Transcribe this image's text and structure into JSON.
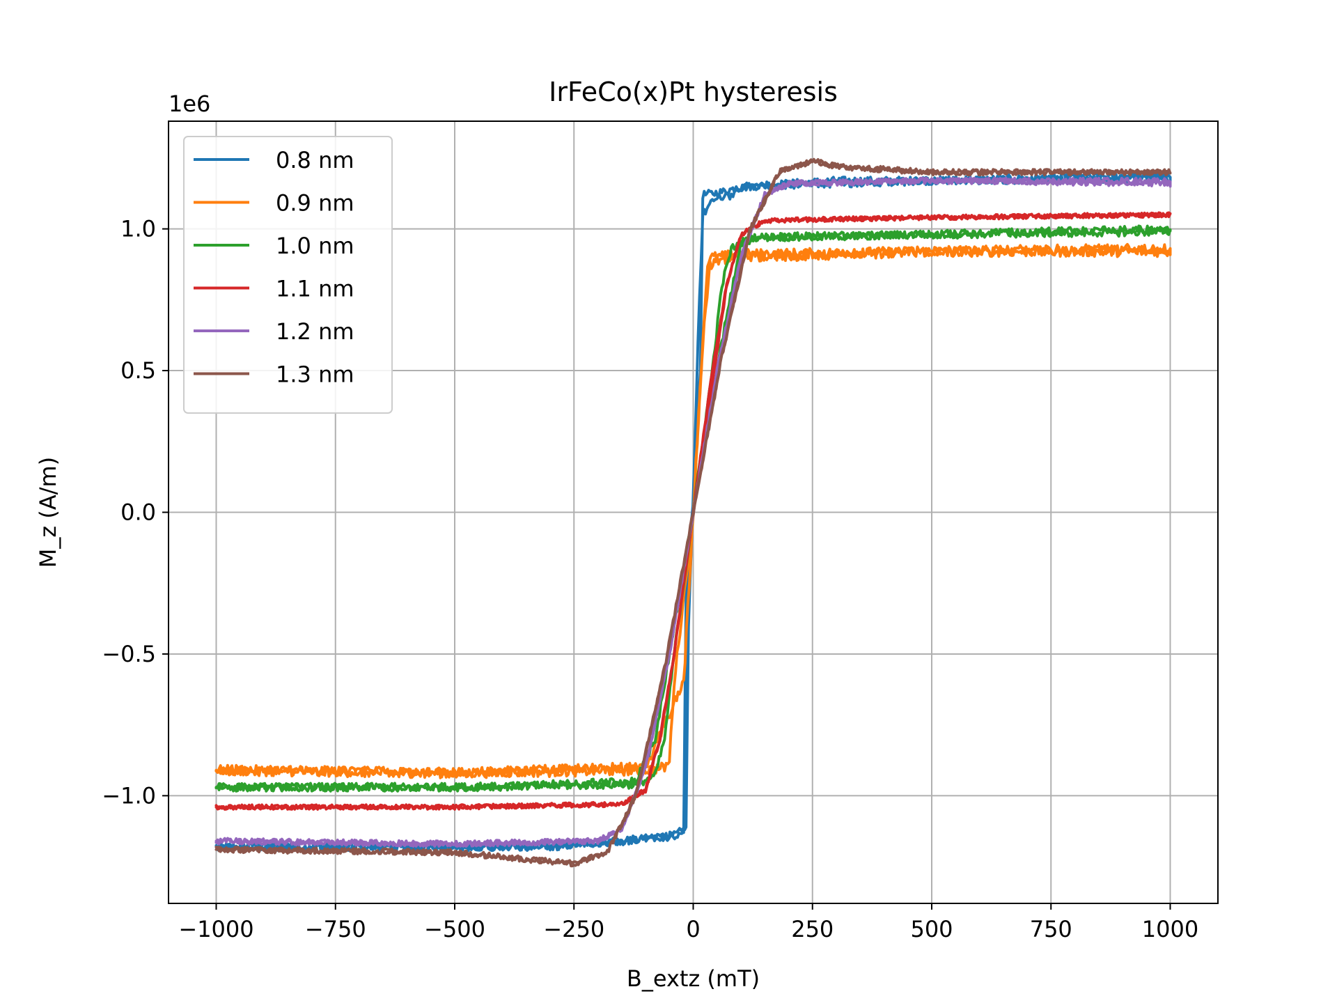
{
  "chart_data": {
    "type": "line",
    "title": "IrFeCo(x)Pt hysteresis",
    "xlabel": "B_extz (mT)",
    "ylabel": "M_z (A/m)",
    "y_offset_label": "1e6",
    "xlim": [
      -1100,
      1100
    ],
    "ylim": [
      -1.38,
      1.38
    ],
    "y_scale_factor": 1000000,
    "x_ticks": [
      -1000,
      -750,
      -500,
      -250,
      0,
      250,
      500,
      750,
      1000
    ],
    "x_tick_labels": [
      "−1000",
      "−750",
      "−500",
      "−250",
      "0",
      "250",
      "500",
      "750",
      "1000"
    ],
    "y_ticks": [
      -1.0,
      -0.5,
      0.0,
      0.5,
      1.0
    ],
    "y_tick_labels": [
      "−1.0",
      "−0.5",
      "0.0",
      "0.5",
      "1.0"
    ],
    "grid": true,
    "legend_position": "top-left",
    "series": [
      {
        "name": "0.8 nm",
        "color": "#1f77b4",
        "noise": 0.014,
        "x": [
          -1000,
          -300,
          -150,
          -40,
          -20,
          -15,
          0,
          15,
          20,
          60,
          80,
          120,
          200,
          300,
          500,
          1000,
          1000,
          500,
          100,
          90,
          80,
          40,
          20,
          10,
          0,
          -10,
          -15,
          -30,
          -150,
          -300,
          -1000
        ],
        "values": [
          -1.18,
          -1.18,
          -1.16,
          -1.14,
          -1.12,
          -0.3,
          0.05,
          0.5,
          1.12,
          1.13,
          1.14,
          1.15,
          1.16,
          1.17,
          1.17,
          1.19,
          1.18,
          1.17,
          1.15,
          1.14,
          1.12,
          1.1,
          1.05,
          0.6,
          0.05,
          -0.4,
          -1.12,
          -1.14,
          -1.16,
          -1.18,
          -1.18
        ]
      },
      {
        "name": "0.9 nm",
        "color": "#ff7f0e",
        "noise": 0.018,
        "x": [
          -1000,
          -500,
          -100,
          -60,
          -50,
          -40,
          0,
          20,
          30,
          40,
          100,
          500,
          1000,
          1000,
          500,
          100,
          50,
          35,
          20,
          0,
          -20,
          -100,
          -500,
          -1000
        ],
        "values": [
          -0.91,
          -0.92,
          -0.91,
          -0.9,
          -0.88,
          -0.6,
          0.0,
          0.6,
          0.88,
          0.9,
          0.91,
          0.92,
          0.92,
          0.93,
          0.92,
          0.9,
          0.89,
          0.87,
          0.6,
          0.0,
          -0.6,
          -0.9,
          -0.92,
          -0.91
        ]
      },
      {
        "name": "1.0 nm",
        "color": "#2ca02c",
        "noise": 0.014,
        "x": [
          -1000,
          -500,
          -120,
          -80,
          -60,
          -40,
          0,
          40,
          60,
          80,
          120,
          500,
          1000,
          1000,
          500,
          150,
          100,
          60,
          0,
          -40,
          -80,
          -120,
          -500,
          -1000
        ],
        "values": [
          -0.97,
          -0.97,
          -0.96,
          -0.93,
          -0.8,
          -0.5,
          0.0,
          0.5,
          0.8,
          0.93,
          0.97,
          0.98,
          0.99,
          1.0,
          0.98,
          0.97,
          0.95,
          0.6,
          0.0,
          -0.4,
          -0.8,
          -0.95,
          -0.97,
          -0.97
        ]
      },
      {
        "name": "1.1 nm",
        "color": "#d62728",
        "noise": 0.008,
        "x": [
          -1000,
          -500,
          -150,
          -100,
          -70,
          -40,
          0,
          40,
          70,
          100,
          150,
          500,
          1000,
          1000,
          500,
          150,
          100,
          70,
          40,
          0,
          -40,
          -70,
          -100,
          -150,
          -500,
          -1000
        ],
        "values": [
          -1.04,
          -1.04,
          -1.03,
          -0.98,
          -0.8,
          -0.5,
          0.0,
          0.45,
          0.8,
          0.98,
          1.03,
          1.04,
          1.05,
          1.05,
          1.04,
          1.03,
          0.98,
          0.8,
          0.5,
          0.0,
          -0.5,
          -0.8,
          -0.98,
          -1.03,
          -1.04,
          -1.04
        ]
      },
      {
        "name": "1.2 nm",
        "color": "#9467bd",
        "noise": 0.01,
        "x": [
          -1000,
          -500,
          -200,
          -150,
          -100,
          -50,
          0,
          50,
          100,
          150,
          200,
          500,
          1000,
          1000,
          500,
          200,
          150,
          100,
          50,
          0,
          -50,
          -100,
          -150,
          -200,
          -500,
          -1000
        ],
        "values": [
          -1.16,
          -1.17,
          -1.16,
          -1.12,
          -0.9,
          -0.5,
          0.0,
          0.5,
          0.9,
          1.12,
          1.16,
          1.17,
          1.17,
          1.16,
          1.17,
          1.16,
          1.12,
          0.9,
          0.5,
          0.0,
          -0.5,
          -0.9,
          -1.12,
          -1.16,
          -1.17,
          -1.16
        ]
      },
      {
        "name": "1.3 nm",
        "color": "#8c564b",
        "noise": 0.01,
        "x": [
          -1000,
          -500,
          -250,
          -180,
          -120,
          -60,
          0,
          60,
          120,
          180,
          250,
          300,
          500,
          1000,
          1000,
          500,
          300,
          250,
          180,
          120,
          60,
          0,
          -60,
          -120,
          -180,
          -250,
          -500,
          -1000
        ],
        "values": [
          -1.19,
          -1.2,
          -1.24,
          -1.2,
          -1.0,
          -0.55,
          0.0,
          0.55,
          1.0,
          1.2,
          1.24,
          1.22,
          1.2,
          1.2,
          1.2,
          1.2,
          1.22,
          1.24,
          1.2,
          1.0,
          0.55,
          0.0,
          -0.55,
          -1.0,
          -1.2,
          -1.24,
          -1.2,
          -1.19
        ]
      }
    ]
  }
}
